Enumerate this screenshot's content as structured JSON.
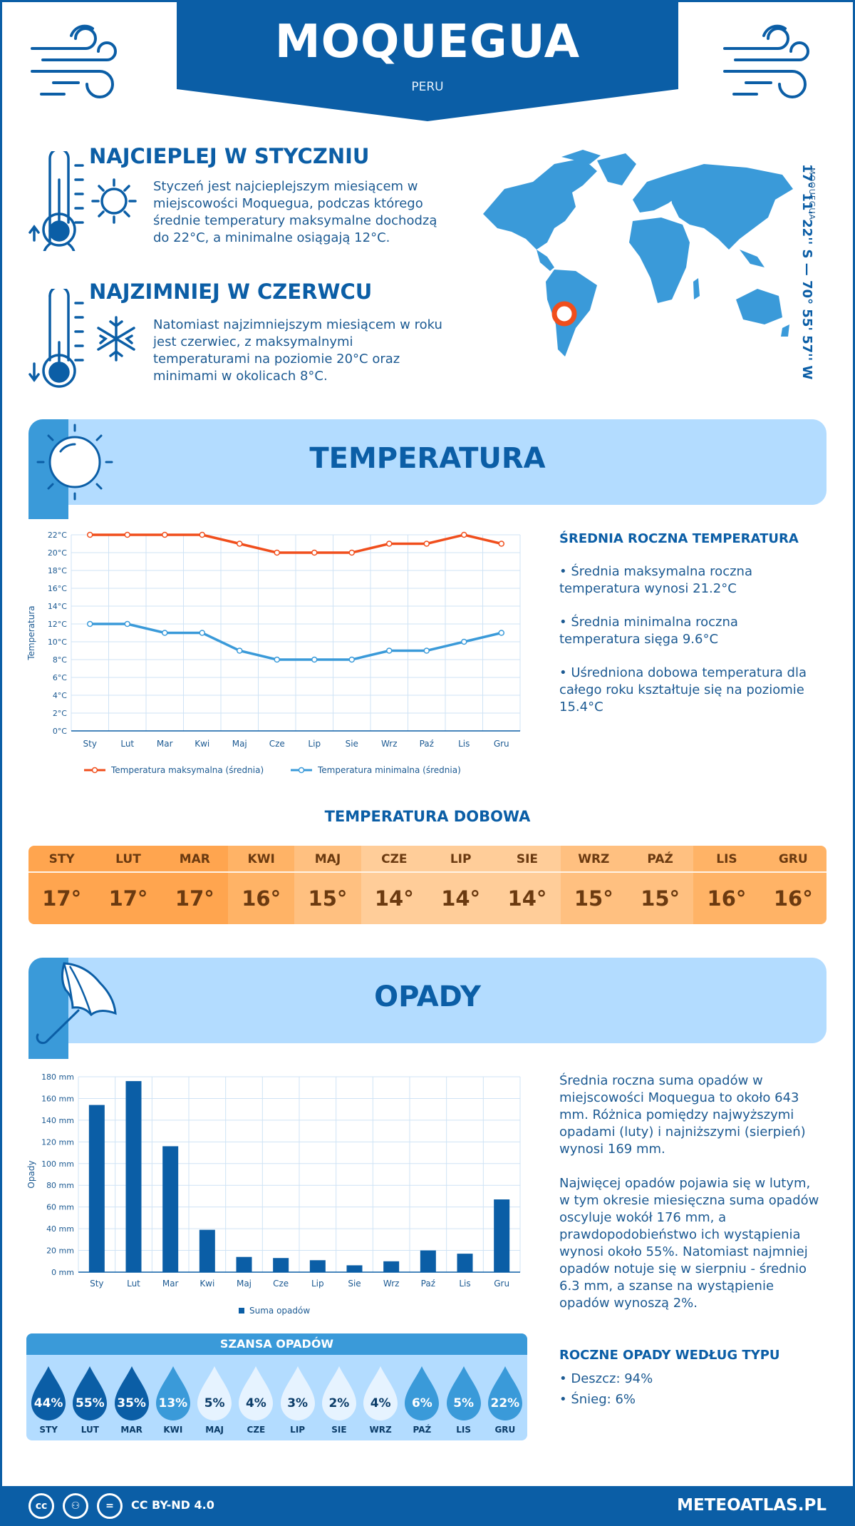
{
  "header": {
    "city": "MOQUEGUA",
    "country": "PERU"
  },
  "warmest": {
    "title": "NAJCIEPLEJ W STYCZNIU",
    "text": "Styczeń jest najcieplejszym miesiącem w miejscowości Moquegua, podczas którego średnie temperatury maksymalne dochodzą do 22°C, a minimalne osiągają 12°C."
  },
  "coldest": {
    "title": "NAJZIMNIEJ W CZERWCU",
    "text": "Natomiast najzimniejszym miesiącem w roku jest czerwiec, z maksymalnymi temperaturami na poziomie 20°C oraz minimami w okolicach 8°C."
  },
  "location": {
    "coords": "17° 11' 22'' S — 70° 55' 57'' W",
    "place": "MOQUEGUA"
  },
  "temperature_section": {
    "title": "TEMPERATURA",
    "stats_title": "ŚREDNIA ROCZNA TEMPERATURA",
    "stat1": "• Średnia maksymalna roczna temperatura wynosi 21.2°C",
    "stat2": "• Średnia minimalna roczna temperatura sięga 9.6°C",
    "stat3": "• Uśredniona dobowa temperatura dla całego roku kształtuje się na poziomie 15.4°C"
  },
  "daily": {
    "title": "TEMPERATURA DOBOWA",
    "months": [
      "STY",
      "LUT",
      "MAR",
      "KWI",
      "MAJ",
      "CZE",
      "LIP",
      "SIE",
      "WRZ",
      "PAŹ",
      "LIS",
      "GRU"
    ],
    "values": [
      "17°",
      "17°",
      "17°",
      "16°",
      "15°",
      "14°",
      "14°",
      "14°",
      "15°",
      "15°",
      "16°",
      "16°"
    ],
    "colors": [
      "#ffa54f",
      "#ffa54f",
      "#ffa54f",
      "#ffb366",
      "#ffc080",
      "#ffcd99",
      "#ffcd99",
      "#ffcd99",
      "#ffc080",
      "#ffc080",
      "#ffb366",
      "#ffb366"
    ]
  },
  "precip_section": {
    "title": "OPADY",
    "text1": "Średnia roczna suma opadów w miejscowości Moquegua to około 643 mm. Różnica pomiędzy najwyższymi opadami (luty) i najniższymi (sierpień) wynosi 169 mm.",
    "text2": "Najwięcej opadów pojawia się w lutym, w tym okresie miesięczna suma opadów oscyluje wokół 176 mm, a prawdopodobieństwo ich wystąpienia wynosi około 55%. Natomiast najmniej opadów notuje się w sierpniu - średnio 6.3 mm, a szanse na wystąpienie opadów wynoszą 2%.",
    "type_title": "ROCZNE OPADY WEDŁUG TYPU",
    "rain": "• Deszcz: 94%",
    "snow": "• Śnieg: 6%"
  },
  "chance": {
    "title": "SZANSA OPADÓW",
    "months": [
      "STY",
      "LUT",
      "MAR",
      "KWI",
      "MAJ",
      "CZE",
      "LIP",
      "SIE",
      "WRZ",
      "PAŹ",
      "LIS",
      "GRU"
    ],
    "values": [
      "44%",
      "55%",
      "35%",
      "13%",
      "5%",
      "4%",
      "3%",
      "2%",
      "4%",
      "6%",
      "5%",
      "22%"
    ],
    "fills": [
      "#0b5ea6",
      "#0b5ea6",
      "#0b5ea6",
      "#3a9ad9",
      "#e6f3ff",
      "#e6f3ff",
      "#e6f3ff",
      "#e6f3ff",
      "#e6f3ff",
      "#3a9ad9",
      "#3a9ad9",
      "#3a9ad9"
    ],
    "text_colors": [
      "#ffffff",
      "#ffffff",
      "#ffffff",
      "#ffffff",
      "#0b3c68",
      "#0b3c68",
      "#0b3c68",
      "#0b3c68",
      "#0b3c68",
      "#ffffff",
      "#ffffff",
      "#ffffff"
    ]
  },
  "footer": {
    "license": "CC BY-ND 4.0",
    "site": "METEOATLAS.PL"
  },
  "chart_data": [
    {
      "type": "line",
      "categories": [
        "Sty",
        "Lut",
        "Mar",
        "Kwi",
        "Maj",
        "Cze",
        "Lip",
        "Sie",
        "Wrz",
        "Paź",
        "Lis",
        "Gru"
      ],
      "series": [
        {
          "name": "Temperatura maksymalna (średnia)",
          "values": [
            22,
            22,
            22,
            22,
            21,
            20,
            20,
            20,
            21,
            21,
            22,
            21
          ],
          "color": "#f04e1c"
        },
        {
          "name": "Temperatura minimalna (średnia)",
          "values": [
            12,
            12,
            11,
            11,
            9,
            8,
            8,
            8,
            9,
            9,
            10,
            11
          ],
          "color": "#3a9ad9"
        }
      ],
      "ylabel": "Temperatura",
      "ylim": [
        0,
        22
      ],
      "yticks": [
        "0°C",
        "2°C",
        "4°C",
        "6°C",
        "8°C",
        "10°C",
        "12°C",
        "14°C",
        "16°C",
        "18°C",
        "20°C",
        "22°C"
      ],
      "legend": "bottom"
    },
    {
      "type": "bar",
      "categories": [
        "Sty",
        "Lut",
        "Mar",
        "Kwi",
        "Maj",
        "Cze",
        "Lip",
        "Sie",
        "Wrz",
        "Paź",
        "Lis",
        "Gru"
      ],
      "series": [
        {
          "name": "Suma opadów",
          "values": [
            154,
            176,
            116,
            39,
            14,
            13,
            11,
            6.3,
            10,
            20,
            17,
            67
          ],
          "color": "#0b5ea6"
        }
      ],
      "ylabel": "Opady",
      "ylim": [
        0,
        180
      ],
      "yticks": [
        "0 mm",
        "20 mm",
        "40 mm",
        "60 mm",
        "80 mm",
        "100 mm",
        "120 mm",
        "140 mm",
        "160 mm",
        "180 mm"
      ],
      "legend": "bottom"
    }
  ]
}
